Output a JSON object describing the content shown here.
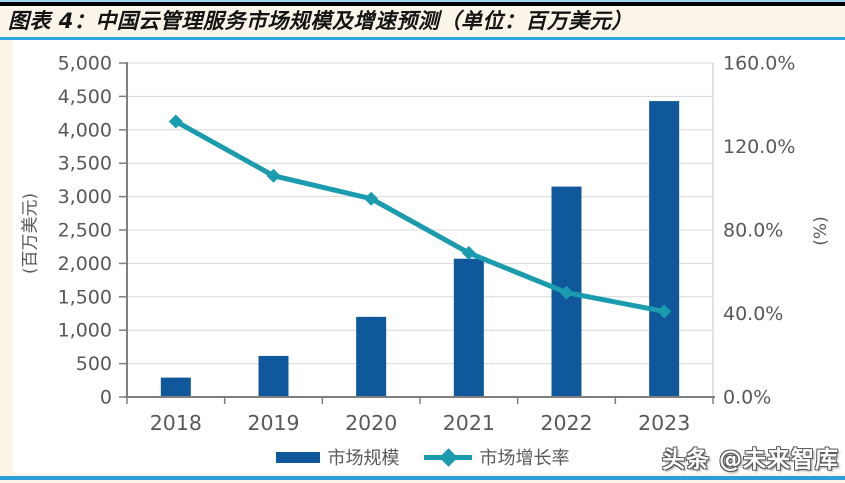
{
  "header": {
    "title": "图表 4：中国云管理服务市场规模及增速预测（单位：百万美元）"
  },
  "watermark": {
    "text": "头条 @未来智库"
  },
  "chart_data": {
    "type": "bar",
    "subtype": "combo bar+line, dual axis",
    "title": "中国云管理服务市场规模及增速预测（单位：百万美元）",
    "categories": [
      "2018",
      "2019",
      "2020",
      "2021",
      "2022",
      "2023"
    ],
    "series": [
      {
        "name": "市场规模",
        "type": "bar",
        "axis": "left",
        "color": "#0F589B",
        "values": [
          290,
          615,
          1200,
          2070,
          3150,
          4430
        ]
      },
      {
        "name": "市场增长率",
        "type": "line",
        "axis": "right",
        "color": "#1B9BAE",
        "values": [
          132,
          106,
          95,
          69,
          50,
          41
        ],
        "unit": "%"
      }
    ],
    "left_axis": {
      "title": "(百万美元)",
      "min": 0,
      "max": 5000,
      "step": 500,
      "tick_labels": [
        "0",
        "500",
        "1,000",
        "1,500",
        "2,000",
        "2,500",
        "3,000",
        "3,500",
        "4,000",
        "4,500",
        "5,000"
      ]
    },
    "right_axis": {
      "title": "(%)",
      "min": 0,
      "max": 160,
      "step": 40,
      "tick_labels": [
        "0.0%",
        "40.0%",
        "80.0%",
        "120.0%",
        "160.0%"
      ]
    },
    "grid": true,
    "legend_position": "bottom",
    "colors": {
      "gridline": "#D8D8D8",
      "axis_line": "#7F7F7F",
      "plot_border": "#C6C6C6",
      "tick_text": "#595959",
      "page_background": "#FBF5E9",
      "panel_background": "#FFFFFF",
      "accent_rule": "#2EA6DC",
      "bottom_rule": "#2B9DD8"
    }
  }
}
